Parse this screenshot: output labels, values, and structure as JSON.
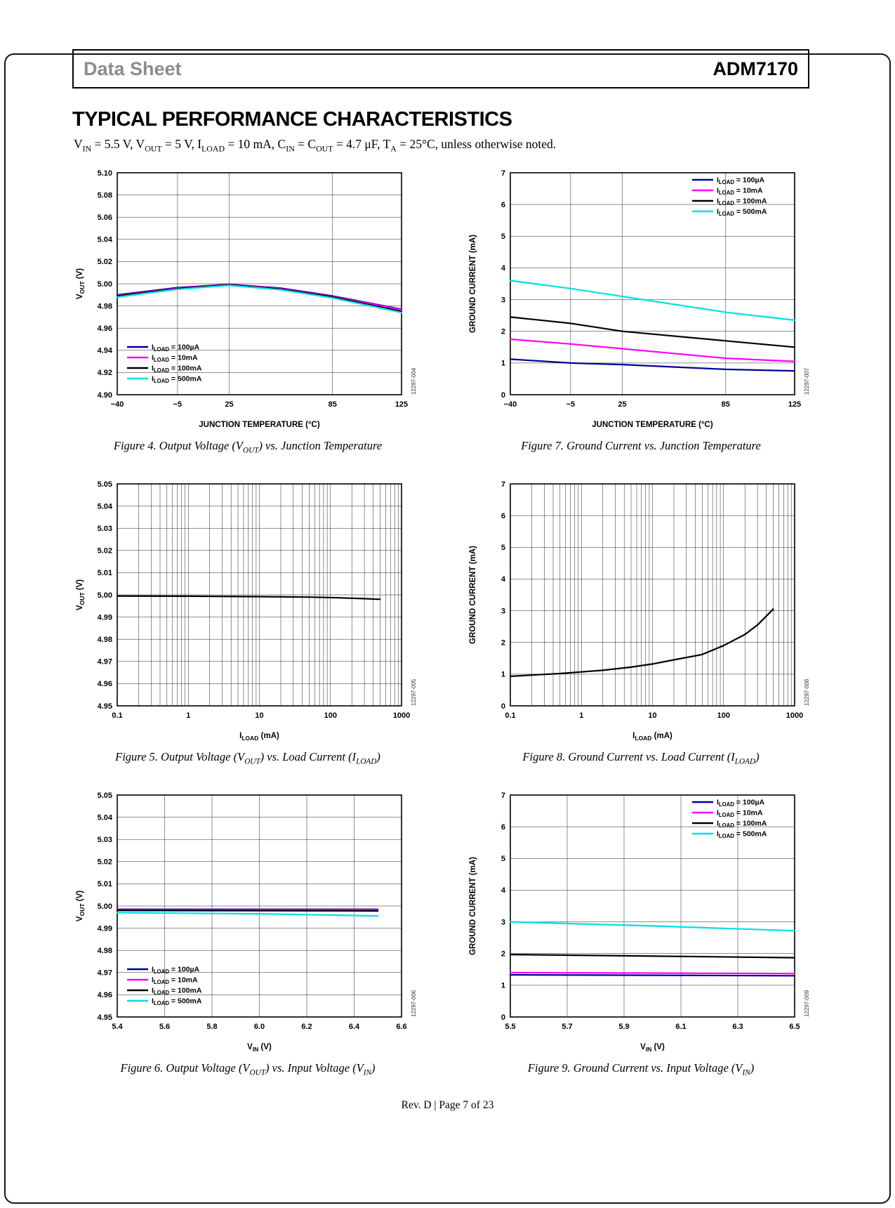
{
  "header": {
    "doc_type": "Data Sheet",
    "part_number": "ADM7170"
  },
  "section_title": "TYPICAL PERFORMANCE CHARACTERISTICS",
  "conditions": "V~IN~ = 5.5 V, V~OUT~ = 5 V, I~LOAD~ = 10 mA, C~IN~ = C~OUT~ = 4.7 μF, T~A~ = 25°C, unless otherwise noted.",
  "footer": "Rev. D | Page 7 of 23",
  "colors": {
    "iload_100uA": "#000099",
    "iload_10mA": "#FF00FF",
    "iload_100mA": "#000000",
    "iload_500mA": "#00E0E4"
  },
  "chart_data": [
    {
      "id": "figure-4",
      "type": "line",
      "watermark": "12297-004",
      "caption": "Figure 4. Output Voltage (V~OUT~) vs. Junction Temperature",
      "x": {
        "type": "linear",
        "min": -40,
        "max": 125,
        "tick_values": [
          -40,
          -5,
          25,
          85,
          125
        ],
        "tick_labels": [
          "−40",
          "−5",
          "25",
          "85",
          "125"
        ],
        "label": "JUNCTION TEMPERATURE (°C)"
      },
      "y": {
        "min": 4.9,
        "max": 5.1,
        "step": 0.02,
        "decimals": 2,
        "label": "V~OUT~ (V)"
      },
      "legend": {
        "pos": "bottom-left"
      },
      "series": [
        {
          "name": "I~LOAD~ = 100µA",
          "color": "#000099",
          "points": [
            [
              -40,
              4.99
            ],
            [
              -5,
              4.9965
            ],
            [
              25,
              4.9995
            ],
            [
              55,
              4.996
            ],
            [
              85,
              4.989
            ],
            [
              125,
              4.977
            ]
          ]
        },
        {
          "name": "I~LOAD~ = 10mA",
          "color": "#FF00FF",
          "points": [
            [
              -40,
              4.9895
            ],
            [
              -5,
              4.996
            ],
            [
              25,
              4.9993
            ],
            [
              55,
              4.9955
            ],
            [
              85,
              4.9885
            ],
            [
              125,
              4.9765
            ]
          ]
        },
        {
          "name": "I~LOAD~ = 100mA",
          "color": "#000000",
          "points": [
            [
              -40,
              4.989
            ],
            [
              -5,
              4.9955
            ],
            [
              25,
              4.999
            ],
            [
              55,
              4.995
            ],
            [
              85,
              4.988
            ],
            [
              125,
              4.975
            ]
          ]
        },
        {
          "name": "I~LOAD~ = 500mA",
          "color": "#00E0E4",
          "points": [
            [
              -40,
              4.988
            ],
            [
              -5,
              4.995
            ],
            [
              25,
              4.9985
            ],
            [
              55,
              4.9945
            ],
            [
              85,
              4.9872
            ],
            [
              125,
              4.974
            ]
          ]
        }
      ]
    },
    {
      "id": "figure-7",
      "type": "line",
      "watermark": "12297-007",
      "caption": "Figure 7. Ground Current vs. Junction Temperature",
      "x": {
        "type": "linear",
        "min": -40,
        "max": 125,
        "tick_values": [
          -40,
          -5,
          25,
          85,
          125
        ],
        "tick_labels": [
          "−40",
          "−5",
          "25",
          "85",
          "125"
        ],
        "label": "JUNCTION TEMPERATURE (°C)"
      },
      "y": {
        "min": 0,
        "max": 7,
        "step": 1,
        "decimals": 0,
        "label": "GROUND CURRENT (mA)"
      },
      "legend": {
        "pos": "top-right"
      },
      "series": [
        {
          "name": "I~LOAD~ = 100µA",
          "color": "#000099",
          "points": [
            [
              -40,
              1.12
            ],
            [
              -5,
              1.0
            ],
            [
              25,
              0.95
            ],
            [
              85,
              0.8
            ],
            [
              125,
              0.75
            ]
          ]
        },
        {
          "name": "I~LOAD~ = 10mA",
          "color": "#FF00FF",
          "points": [
            [
              -40,
              1.75
            ],
            [
              -5,
              1.6
            ],
            [
              25,
              1.45
            ],
            [
              85,
              1.15
            ],
            [
              125,
              1.05
            ]
          ]
        },
        {
          "name": "I~LOAD~ = 100mA",
          "color": "#000000",
          "points": [
            [
              -40,
              2.45
            ],
            [
              -5,
              2.25
            ],
            [
              25,
              2.0
            ],
            [
              85,
              1.7
            ],
            [
              125,
              1.5
            ]
          ]
        },
        {
          "name": "I~LOAD~ = 500mA",
          "color": "#00E0E4",
          "points": [
            [
              -40,
              3.6
            ],
            [
              -5,
              3.35
            ],
            [
              25,
              3.1
            ],
            [
              85,
              2.6
            ],
            [
              125,
              2.35
            ]
          ]
        }
      ]
    },
    {
      "id": "figure-5",
      "type": "line",
      "watermark": "12297-005",
      "caption": "Figure 5. Output Voltage (V~OUT~) vs. Load Current (I~LOAD~)",
      "x": {
        "type": "log",
        "min": 0.1,
        "max": 1000,
        "tick_values": [
          0.1,
          1,
          10,
          100,
          1000
        ],
        "tick_labels": [
          "0.1",
          "1",
          "10",
          "100",
          "1000"
        ],
        "label": "I~LOAD~ (mA)"
      },
      "y": {
        "min": 4.95,
        "max": 5.05,
        "step": 0.01,
        "decimals": 2,
        "label": "V~OUT~ (V)"
      },
      "legend": null,
      "series": [
        {
          "name": "V~OUT~",
          "color": "#000000",
          "points": [
            [
              0.1,
              4.9995
            ],
            [
              1,
              4.9994
            ],
            [
              10,
              4.9992
            ],
            [
              50,
              4.999
            ],
            [
              100,
              4.9988
            ],
            [
              300,
              4.9983
            ],
            [
              500,
              4.998
            ]
          ]
        }
      ]
    },
    {
      "id": "figure-8",
      "type": "line",
      "watermark": "12297-008",
      "caption": "Figure 8. Ground Current vs. Load Current (I~LOAD~)",
      "x": {
        "type": "log",
        "min": 0.1,
        "max": 1000,
        "tick_values": [
          0.1,
          1,
          10,
          100,
          1000
        ],
        "tick_labels": [
          "0.1",
          "1",
          "10",
          "100",
          "1000"
        ],
        "label": "I~LOAD~ (mA)"
      },
      "y": {
        "min": 0,
        "max": 7,
        "step": 1,
        "decimals": 0,
        "label": "GROUND CURRENT (mA)"
      },
      "legend": null,
      "series": [
        {
          "name": "GROUND CURRENT",
          "color": "#000000",
          "points": [
            [
              0.1,
              0.93
            ],
            [
              0.2,
              0.97
            ],
            [
              0.5,
              1.02
            ],
            [
              1,
              1.07
            ],
            [
              2,
              1.12
            ],
            [
              5,
              1.22
            ],
            [
              10,
              1.32
            ],
            [
              20,
              1.45
            ],
            [
              50,
              1.62
            ],
            [
              100,
              1.9
            ],
            [
              200,
              2.25
            ],
            [
              300,
              2.55
            ],
            [
              500,
              3.05
            ]
          ]
        }
      ]
    },
    {
      "id": "figure-6",
      "type": "line",
      "watermark": "12297-006",
      "caption": "Figure 6. Output Voltage (V~OUT~) vs. Input Voltage (V~IN~)",
      "x": {
        "type": "linear",
        "min": 5.4,
        "max": 6.6,
        "tick_values": [
          5.4,
          5.6,
          5.8,
          6.0,
          6.2,
          6.4,
          6.6
        ],
        "tick_labels": [
          "5.4",
          "5.6",
          "5.8",
          "6.0",
          "6.2",
          "6.4",
          "6.6"
        ],
        "label": "V~IN~ (V)"
      },
      "y": {
        "min": 4.95,
        "max": 5.05,
        "step": 0.01,
        "decimals": 2,
        "label": "V~OUT~ (V)"
      },
      "legend": {
        "pos": "bottom-left"
      },
      "series": [
        {
          "name": "I~LOAD~ = 100µA",
          "color": "#000099",
          "points": [
            [
              5.4,
              4.9985
            ],
            [
              6.5,
              4.9985
            ]
          ]
        },
        {
          "name": "I~LOAD~ = 10mA",
          "color": "#FF00FF",
          "points": [
            [
              5.4,
              4.9982
            ],
            [
              6.5,
              4.9982
            ]
          ]
        },
        {
          "name": "I~LOAD~ = 100mA",
          "color": "#000000",
          "points": [
            [
              5.4,
              4.998
            ],
            [
              6.5,
              4.9978
            ]
          ]
        },
        {
          "name": "I~LOAD~ = 500mA",
          "color": "#00E0E4",
          "points": [
            [
              5.4,
              4.997
            ],
            [
              6.0,
              4.9965
            ],
            [
              6.5,
              4.9955
            ]
          ]
        }
      ]
    },
    {
      "id": "figure-9",
      "type": "line",
      "watermark": "12297-009",
      "caption": "Figure 9. Ground Current vs. Input Voltage (V~IN~)",
      "x": {
        "type": "linear",
        "min": 5.5,
        "max": 6.5,
        "tick_values": [
          5.5,
          5.7,
          5.9,
          6.1,
          6.3,
          6.5
        ],
        "tick_labels": [
          "5.5",
          "5.7",
          "5.9",
          "6.1",
          "6.3",
          "6.5"
        ],
        "label": "V~IN~ (V)"
      },
      "y": {
        "min": 0,
        "max": 7,
        "step": 1,
        "decimals": 0,
        "label": "GROUND CURRENT (mA)"
      },
      "legend": {
        "pos": "top-right"
      },
      "series": [
        {
          "name": "I~LOAD~ = 100µA",
          "color": "#000099",
          "points": [
            [
              5.5,
              1.33
            ],
            [
              6.5,
              1.3
            ]
          ]
        },
        {
          "name": "I~LOAD~ = 10mA",
          "color": "#FF00FF",
          "points": [
            [
              5.5,
              1.4
            ],
            [
              6.5,
              1.37
            ]
          ]
        },
        {
          "name": "I~LOAD~ = 100mA",
          "color": "#000000",
          "points": [
            [
              5.5,
              1.97
            ],
            [
              6.5,
              1.87
            ]
          ]
        },
        {
          "name": "I~LOAD~ = 500mA",
          "color": "#00E0E4",
          "points": [
            [
              5.5,
              3.0
            ],
            [
              6.0,
              2.87
            ],
            [
              6.5,
              2.72
            ]
          ]
        }
      ]
    }
  ]
}
